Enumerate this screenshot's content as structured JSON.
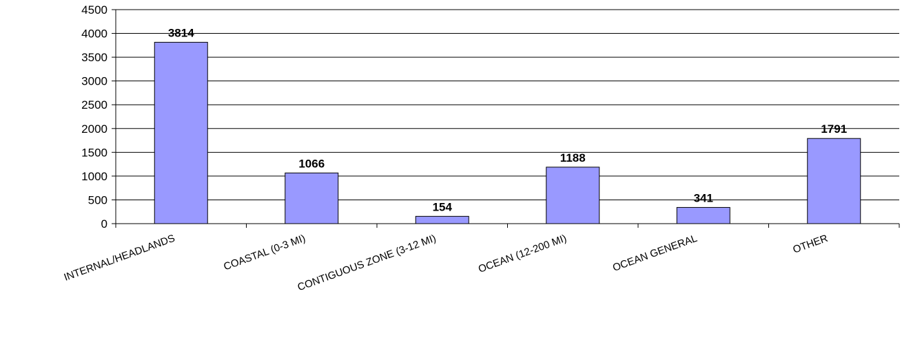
{
  "chart_data": {
    "type": "bar",
    "categories": [
      "INTERNAL/HEADLANDS",
      "COASTAL (0-3 MI)",
      "CONTIGUOUS ZONE (3-12 MI)",
      "OCEAN (12-200 MI)",
      "OCEAN GENERAL",
      "OTHER"
    ],
    "values": [
      3814,
      1066,
      154,
      1188,
      341,
      1791
    ],
    "data_labels": [
      "3814",
      "1066",
      "154",
      "1188",
      "341",
      "1791"
    ],
    "y_ticks": [
      "0",
      "500",
      "1000",
      "1500",
      "2000",
      "2500",
      "3000",
      "3500",
      "4000",
      "4500"
    ],
    "ylim": [
      0,
      4500
    ],
    "grid": true,
    "legend": "none",
    "colors": {
      "bar_fill": "#9999ff",
      "bar_stroke": "#000000",
      "grid": "#000000"
    }
  }
}
